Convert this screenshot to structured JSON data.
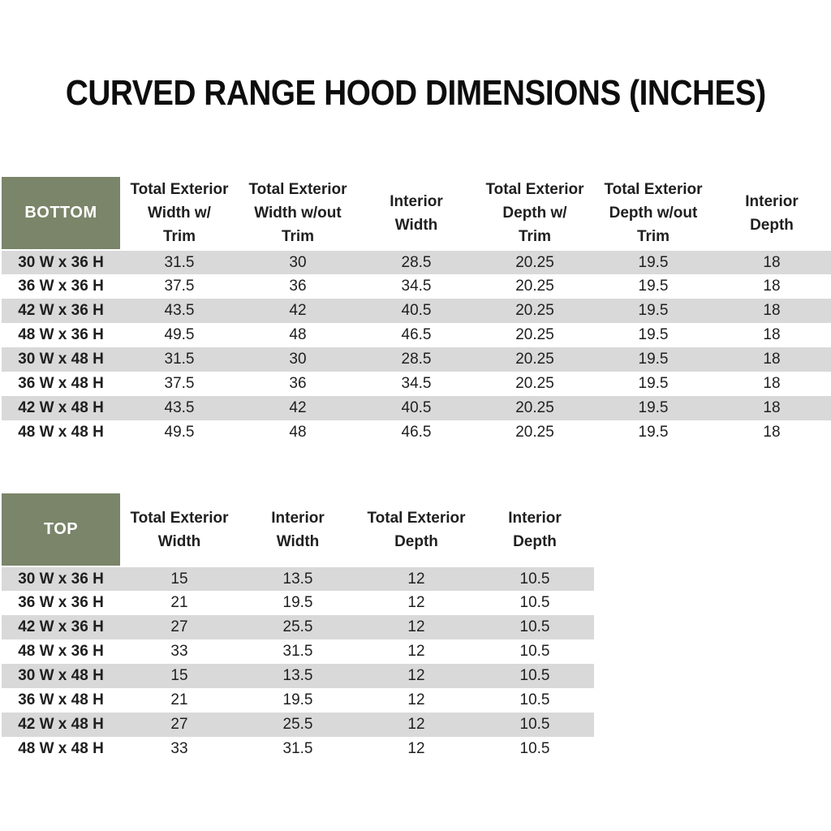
{
  "title": "CURVED RANGE HOOD DIMENSIONS (INCHES)",
  "units": "INCHES",
  "colors": {
    "header_green": "#7a8569",
    "row_stripe": "#d9d9d9",
    "row_base": "#ffffff",
    "text": "#1f1f1f",
    "title": "#0d0d0d",
    "label_on_green": "#ffffff"
  },
  "tables": [
    {
      "label": "BOTTOM",
      "columns": [
        "Total Exterior\nWidth w/\nTrim",
        "Total Exterior\nWidth w/out\nTrim",
        "Interior\nWidth",
        "Total Exterior\nDepth w/\nTrim",
        "Total Exterior\nDepth w/out\nTrim",
        "Interior\nDepth"
      ],
      "rows": [
        {
          "label": "30 W x 36 H",
          "values": [
            "31.5",
            "30",
            "28.5",
            "20.25",
            "19.5",
            "18"
          ]
        },
        {
          "label": "36 W x 36 H",
          "values": [
            "37.5",
            "36",
            "34.5",
            "20.25",
            "19.5",
            "18"
          ]
        },
        {
          "label": "42 W x 36 H",
          "values": [
            "43.5",
            "42",
            "40.5",
            "20.25",
            "19.5",
            "18"
          ]
        },
        {
          "label": "48 W x 36 H",
          "values": [
            "49.5",
            "48",
            "46.5",
            "20.25",
            "19.5",
            "18"
          ]
        },
        {
          "label": "30 W x 48 H",
          "values": [
            "31.5",
            "30",
            "28.5",
            "20.25",
            "19.5",
            "18"
          ]
        },
        {
          "label": "36 W x 48 H",
          "values": [
            "37.5",
            "36",
            "34.5",
            "20.25",
            "19.5",
            "18"
          ]
        },
        {
          "label": "42 W x 48 H",
          "values": [
            "43.5",
            "42",
            "40.5",
            "20.25",
            "19.5",
            "18"
          ]
        },
        {
          "label": "48 W x 48 H",
          "values": [
            "49.5",
            "48",
            "46.5",
            "20.25",
            "19.5",
            "18"
          ]
        }
      ]
    },
    {
      "label": "TOP",
      "columns": [
        "Total Exterior\nWidth",
        "Interior\nWidth",
        "Total Exterior\nDepth",
        "Interior\nDepth"
      ],
      "rows": [
        {
          "label": "30 W x 36 H",
          "values": [
            "15",
            "13.5",
            "12",
            "10.5"
          ]
        },
        {
          "label": "36 W x 36 H",
          "values": [
            "21",
            "19.5",
            "12",
            "10.5"
          ]
        },
        {
          "label": "42 W x 36 H",
          "values": [
            "27",
            "25.5",
            "12",
            "10.5"
          ]
        },
        {
          "label": "48 W x 36 H",
          "values": [
            "33",
            "31.5",
            "12",
            "10.5"
          ]
        },
        {
          "label": "30 W x 48 H",
          "values": [
            "15",
            "13.5",
            "12",
            "10.5"
          ]
        },
        {
          "label": "36 W x 48 H",
          "values": [
            "21",
            "19.5",
            "12",
            "10.5"
          ]
        },
        {
          "label": "42 W x 48 H",
          "values": [
            "27",
            "25.5",
            "12",
            "10.5"
          ]
        },
        {
          "label": "48 W x 48 H",
          "values": [
            "33",
            "31.5",
            "12",
            "10.5"
          ]
        }
      ]
    }
  ]
}
